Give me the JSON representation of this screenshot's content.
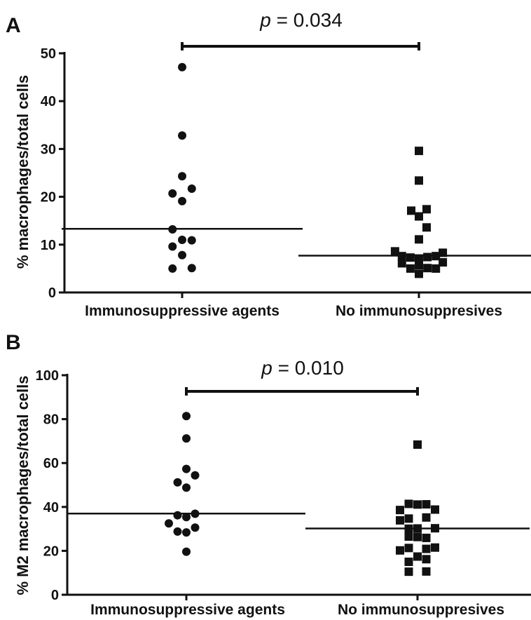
{
  "chart_data": [
    {
      "panel": "A",
      "type": "scatter",
      "ylabel": "% macrophages/total cells",
      "ylim": [
        0,
        50
      ],
      "yticks": [
        0,
        10,
        20,
        30,
        40,
        50
      ],
      "categories": [
        "Immunosuppressive agents",
        "No immunosuppresives"
      ],
      "p_label_prefix": "p",
      "p_label_value": " = 0.034",
      "series": [
        {
          "marker": "circle",
          "mean": 13.3,
          "points": [
            [
              0,
              47.1
            ],
            [
              0,
              32.8
            ],
            [
              -0.25,
              20.7
            ],
            [
              0,
              24.3
            ],
            [
              0.25,
              21.7
            ],
            [
              0,
              19.1
            ],
            [
              -0.25,
              13.2
            ],
            [
              -0.25,
              9.6
            ],
            [
              0,
              11.0
            ],
            [
              0.25,
              10.9
            ],
            [
              0,
              7.8
            ],
            [
              -0.25,
              5.0
            ],
            [
              0.25,
              5.1
            ]
          ]
        },
        {
          "marker": "square",
          "mean": 7.7,
          "points": [
            [
              0,
              29.6
            ],
            [
              0,
              23.4
            ],
            [
              -0.2,
              17.1
            ],
            [
              0.2,
              17.4
            ],
            [
              0,
              15.9
            ],
            [
              0.2,
              13.6
            ],
            [
              0,
              11.1
            ],
            [
              -0.62,
              8.6
            ],
            [
              -0.44,
              7.6
            ],
            [
              -0.44,
              6.1
            ],
            [
              -0.22,
              7.3
            ],
            [
              -0.22,
              5.0
            ],
            [
              0,
              7.1
            ],
            [
              0,
              5.7
            ],
            [
              0,
              3.9
            ],
            [
              0.22,
              7.4
            ],
            [
              0.22,
              5.1
            ],
            [
              0.44,
              7.6
            ],
            [
              0.44,
              5.0
            ],
            [
              0.62,
              8.3
            ],
            [
              0.62,
              6.3
            ]
          ]
        }
      ]
    },
    {
      "panel": "B",
      "type": "scatter",
      "ylabel": "% M2 macrophages/total cells",
      "ylim": [
        0,
        100
      ],
      "yticks": [
        0,
        20,
        40,
        60,
        80,
        100
      ],
      "categories": [
        "Immunosuppressive agents",
        "No immunosuppresives"
      ],
      "p_label_prefix": "p",
      "p_label_value": " = 0.010",
      "series": [
        {
          "marker": "circle",
          "mean": 37.0,
          "points": [
            [
              0,
              81.4
            ],
            [
              0,
              71.2
            ],
            [
              0,
              57.3
            ],
            [
              -0.25,
              51.2
            ],
            [
              0.25,
              54.4
            ],
            [
              0,
              48.8
            ],
            [
              0.25,
              36.9
            ],
            [
              -0.25,
              36.2
            ],
            [
              0,
              35.4
            ],
            [
              -0.5,
              32.5
            ],
            [
              -0.25,
              28.8
            ],
            [
              0,
              28.4
            ],
            [
              0.25,
              30.6
            ],
            [
              0,
              19.6
            ]
          ]
        },
        {
          "marker": "square",
          "mean": 30.2,
          "points": [
            [
              0,
              68.4
            ],
            [
              -0.5,
              38.6
            ],
            [
              -0.25,
              41.4
            ],
            [
              0,
              41.1
            ],
            [
              0.25,
              41.2
            ],
            [
              0.5,
              38.8
            ],
            [
              -0.5,
              33.9
            ],
            [
              -0.25,
              34.7
            ],
            [
              0.25,
              35.2
            ],
            [
              -0.25,
              30.1
            ],
            [
              0,
              30.2
            ],
            [
              0.5,
              30.3
            ],
            [
              -0.25,
              26.5
            ],
            [
              0,
              26.3
            ],
            [
              0.25,
              25.9
            ],
            [
              -0.5,
              20.2
            ],
            [
              -0.25,
              21.3
            ],
            [
              0.25,
              20.9
            ],
            [
              0.5,
              21.5
            ],
            [
              -0.25,
              15.0
            ],
            [
              0,
              17.4
            ],
            [
              0.25,
              16.2
            ],
            [
              -0.25,
              10.5
            ],
            [
              0.25,
              10.6
            ]
          ]
        }
      ]
    }
  ]
}
